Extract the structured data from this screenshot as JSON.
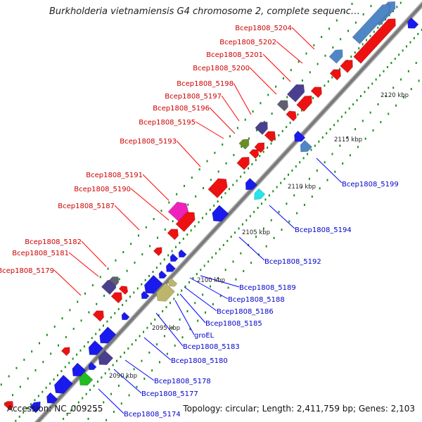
{
  "title": "Burkholderia vietnamiensis G4 chromosome 2, complete sequenc…",
  "footer": {
    "accession": "Accession: NC_009255",
    "summary": "Topology: circular; Length: 2,411,759 bp; Genes: 2,103"
  },
  "colors": {
    "upper_label": "#cc0000",
    "lower_label": "#0000cc",
    "backbone": "#808080",
    "tick_dot": "#1a8f1a"
  },
  "scale_labels": [
    "2090 kbp",
    "2095 kbp",
    "2100 kbp",
    "2105 kbp",
    "2110 kbp",
    "2115 kbp",
    "2120 kbp"
  ],
  "upper_labels": [
    "Bcep1808_5204",
    "Bcep1808_5202",
    "Bcep1808_5201",
    "Bcep1808_5200",
    "Bcep1808_5198",
    "Bcep1808_5197",
    "Bcep1808_5196",
    "Bcep1808_5195",
    "Bcep1808_5193",
    "Bcep1808_5191",
    "Bcep1808_5190",
    "Bcep1808_5187",
    "Bcep1808_5182",
    "Bcep1808_5181",
    "Bcep1808_5179"
  ],
  "lower_labels": [
    "Bcep1808_5199",
    "Bcep1808_5194",
    "Bcep1808_5192",
    "Bcep1808_5189",
    "Bcep1808_5188",
    "Bcep1808_5186",
    "Bcep1808_5185",
    "groEL",
    "Bcep1808_5183",
    "Bcep1808_5180",
    "Bcep1808_5178",
    "Bcep1808_5177",
    "Bcep1808_5174"
  ],
  "gene_colors": {
    "red": "#ee1111",
    "blue": "#1a1aee",
    "steel_blue": "#4f86c6",
    "dark_slate": "#4a3f8f",
    "gray": "#5f5f6f",
    "olive": "#6b8e23",
    "magenta": "#ee22bb",
    "cyan": "#22e5ee",
    "khaki": "#bdb56b",
    "green": "#22bb22"
  }
}
